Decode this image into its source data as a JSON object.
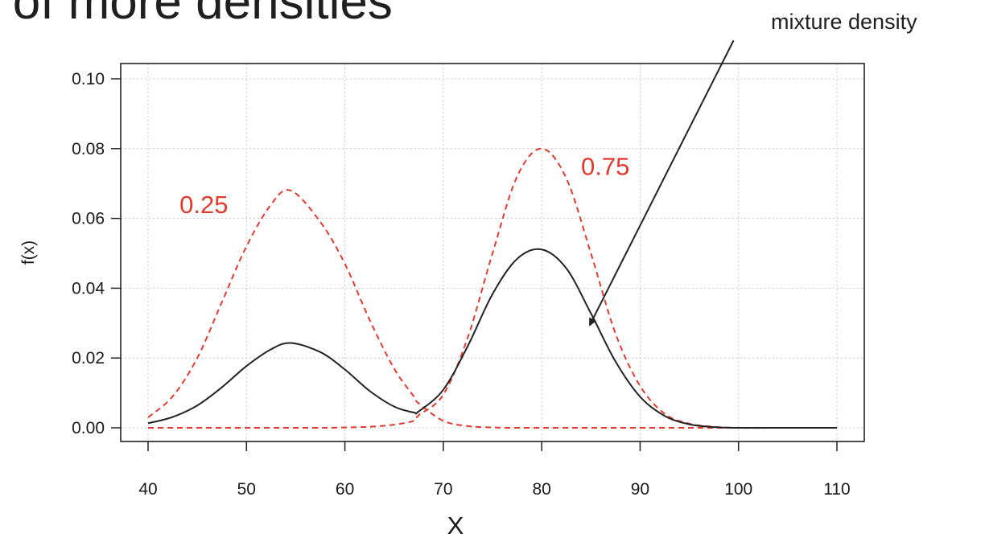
{
  "page": {
    "title": "o of more densities",
    "callout": "mixture density"
  },
  "colors": {
    "mixture": "#222222",
    "component": "#e03a2f",
    "grid": "#c8c8c8"
  },
  "chart_data": {
    "type": "line",
    "title": "",
    "xlabel": "X",
    "ylabel": "f(x)",
    "xlim": [
      40,
      110
    ],
    "ylim": [
      0,
      0.1
    ],
    "x_ticks": [
      40,
      50,
      60,
      70,
      80,
      90,
      100,
      110
    ],
    "y_ticks": [
      "0.00",
      "0.02",
      "0.04",
      "0.06",
      "0.08",
      "0.10"
    ],
    "grid": true,
    "x": [
      40,
      42.5,
      45,
      47.5,
      50,
      52.5,
      54.5,
      57.5,
      60,
      62.5,
      65,
      67,
      67.5,
      70,
      72.5,
      75,
      77.5,
      80,
      82.5,
      85,
      87.5,
      90,
      92.5,
      95,
      97.5,
      100,
      105,
      110
    ],
    "series": [
      {
        "style": "solid",
        "values": [
          0.0013,
          0.0031,
          0.0064,
          0.0116,
          0.0177,
          0.0225,
          0.0243,
          0.0217,
          0.0167,
          0.0106,
          0.0061,
          0.0044,
          0.0047,
          0.0109,
          0.0235,
          0.0383,
          0.0484,
          0.0511,
          0.0457,
          0.0328,
          0.019,
          0.0089,
          0.0034,
          0.001,
          0.0002,
          0.0,
          0.0,
          0.0
        ]
      },
      {
        "style": "dashed",
        "values": [
          0.003,
          0.009,
          0.02,
          0.036,
          0.052,
          0.064,
          0.068,
          0.059,
          0.047,
          0.031,
          0.017,
          0.009,
          0.007,
          0.002,
          0.0005,
          0.0001,
          0.0,
          0.0,
          0.0,
          0.0,
          0.0,
          0.0,
          0.0,
          0.0,
          0.0,
          0.0,
          0.0,
          0.0
        ]
      },
      {
        "style": "dashed",
        "values": [
          0.0,
          0.0,
          0.0,
          0.0,
          0.0,
          0.0,
          0.0,
          0.0,
          0.0001,
          0.0003,
          0.0009,
          0.002,
          0.0036,
          0.0095,
          0.026,
          0.05,
          0.072,
          0.08,
          0.0715,
          0.05,
          0.027,
          0.012,
          0.004,
          0.0012,
          0.0003,
          0.0,
          0.0,
          0.0
        ]
      }
    ],
    "annotations": [
      {
        "text": "0.25",
        "x": 43.2,
        "y": 0.0615
      },
      {
        "text": "0.75",
        "x": 84.0,
        "y": 0.0725
      }
    ],
    "arrow": {
      "from_x": 99.5,
      "from_y": 0.111,
      "to_x": 84.9,
      "to_y": 0.0295
    }
  }
}
